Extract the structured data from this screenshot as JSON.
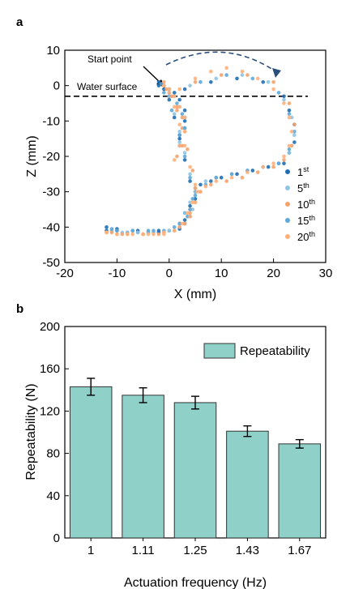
{
  "chart_data": [
    {
      "panel_label": "a",
      "type": "scatter",
      "title": "",
      "xlabel": "X (mm)",
      "ylabel": "Z (mm)",
      "xlim": [
        -20,
        30
      ],
      "ylim": [
        -50,
        10
      ],
      "xticks": [
        "-20",
        "-10",
        "0",
        "10",
        "20",
        "30"
      ],
      "yticks": [
        "10",
        "0",
        "-10",
        "-20",
        "-30",
        "-40",
        "-50"
      ],
      "annotations": {
        "start_point": "Start point",
        "water_surface": "Water surface",
        "water_surface_z": -3
      },
      "legend_position": "right",
      "series": [
        {
          "base": "1",
          "sup": "st",
          "color": "#1f6eb5",
          "x": [
            -12,
            -10,
            -6,
            -2,
            2,
            4,
            5,
            4,
            3,
            2,
            1,
            0,
            -1,
            -2,
            -2,
            -1,
            0,
            1,
            2,
            3,
            3,
            2,
            0,
            3,
            8,
            13,
            18,
            22,
            23,
            24,
            24,
            23,
            22,
            21,
            19,
            16,
            13,
            10,
            8,
            6,
            5,
            4,
            3,
            3,
            3,
            2,
            0,
            -2,
            -4,
            -6,
            -8,
            -10,
            -12
          ],
          "y": [
            -40,
            -40.5,
            -41,
            -41,
            -40,
            -37,
            -32,
            -27,
            -21,
            -15,
            -9,
            -4,
            -1,
            0,
            1,
            0,
            -1,
            -2,
            -4,
            -7,
            -10,
            -14,
            -3,
            -1,
            1,
            2,
            1,
            -3,
            -7,
            -11,
            -16,
            -19,
            -22,
            -22,
            -23,
            -24,
            -25,
            -26,
            -27,
            -28,
            -30,
            -34,
            -36,
            -38,
            -39,
            -40.5,
            -41,
            -41.5,
            -41.5,
            -41.5,
            -41.5,
            -41,
            -41
          ]
        },
        {
          "base": "5",
          "sup": "th",
          "color": "#8fc4e3",
          "x": [
            -11,
            -8,
            -4,
            0,
            3,
            4.5,
            5,
            4,
            3,
            2,
            1,
            0,
            -1,
            -1,
            0,
            1,
            2,
            3,
            3,
            2,
            1,
            4,
            9,
            14,
            19,
            22,
            23.5,
            24,
            23,
            21,
            18,
            15,
            12,
            9,
            7,
            5,
            4,
            3,
            2,
            0,
            -3,
            -6,
            -9,
            -11
          ],
          "y": [
            -41,
            -41.5,
            -41.5,
            -41,
            -39,
            -35,
            -30,
            -25,
            -19,
            -13,
            -8,
            -3,
            0,
            1,
            -1,
            -3,
            -6,
            -9,
            -12,
            -16,
            -3,
            0,
            2,
            3,
            1,
            -4,
            -9,
            -14,
            -19,
            -22,
            -23,
            -24,
            -25,
            -26,
            -27,
            -29,
            -33,
            -36,
            -39,
            -41,
            -41.5,
            -41.5,
            -41.5,
            -41
          ]
        },
        {
          "base": "10",
          "sup": "th",
          "color": "#f4a36b",
          "x": [
            -12,
            -9,
            -5,
            -1,
            2,
            4,
            5,
            4.5,
            3.5,
            2.5,
            1.5,
            0,
            -1,
            -0.5,
            0.5,
            1.5,
            2.5,
            3,
            2.5,
            1.5,
            5,
            10,
            15,
            20,
            23,
            24,
            23.5,
            22,
            20,
            17,
            14,
            11,
            8,
            6,
            5,
            4,
            3,
            1,
            -2,
            -5,
            -8,
            -11
          ],
          "y": [
            -41.5,
            -42,
            -42,
            -41.5,
            -39,
            -35,
            -29,
            -24,
            -18,
            -12,
            -7,
            -2,
            0,
            -1,
            -3,
            -6,
            -9,
            -13,
            -17,
            -20,
            1,
            3,
            3,
            1,
            -5,
            -11,
            -17,
            -21,
            -23,
            -24.5,
            -26,
            -27,
            -28,
            -30,
            -33,
            -36,
            -39,
            -41,
            -42,
            -42,
            -42,
            -41.5
          ]
        },
        {
          "base": "15",
          "sup": "th",
          "color": "#5ea9d8",
          "x": [
            -11,
            -7,
            -3,
            1,
            3.5,
            4.5,
            4,
            3,
            2,
            0.5,
            -1,
            -1.5,
            0,
            1.5,
            2.5,
            3,
            2,
            6,
            11,
            16,
            21,
            23,
            24,
            23,
            21,
            18,
            15,
            12,
            9,
            7,
            5,
            4,
            2,
            -1,
            -4,
            -7,
            -10
          ],
          "y": [
            -40.5,
            -41,
            -41,
            -40,
            -37,
            -32,
            -26,
            -20,
            -14,
            -7,
            -2,
            0.5,
            -2,
            -5,
            -8,
            -12,
            -17,
            1,
            3,
            2,
            -2,
            -8,
            -13,
            -18,
            -22,
            -23,
            -24,
            -25,
            -26,
            -28,
            -31,
            -35,
            -39,
            -41,
            -41,
            -41,
            -41
          ]
        },
        {
          "base": "20",
          "sup": "th",
          "color": "#ffb07a",
          "x": [
            -12,
            -10,
            -7,
            -4,
            -1,
            2,
            4,
            5,
            5,
            4,
            3,
            2,
            1,
            0,
            -1,
            -1,
            0,
            1,
            2,
            3,
            3,
            2,
            1,
            2,
            5,
            8,
            11,
            14,
            17,
            20,
            22,
            23,
            23.5,
            23,
            22,
            20,
            18,
            15,
            12,
            9,
            7,
            5.5,
            4.5,
            3.5,
            2.5,
            1,
            -1,
            -3,
            -5,
            -8,
            -10,
            -12
          ],
          "y": [
            -41.5,
            -42,
            -42,
            -42,
            -41.5,
            -40,
            -37,
            -33,
            -28,
            -23,
            -17,
            -11,
            -6,
            -2,
            0,
            1,
            -1,
            -3,
            -6,
            -9,
            -13,
            -17,
            -21,
            -1,
            2,
            4,
            5,
            4,
            2,
            -1,
            -5,
            -9,
            -13,
            -17,
            -20,
            -22,
            -23,
            -24.5,
            -26,
            -27,
            -28.5,
            -30,
            -33,
            -36,
            -39,
            -41,
            -42,
            -42,
            -42,
            -42,
            -42,
            -41.5
          ]
        }
      ]
    },
    {
      "panel_label": "b",
      "type": "bar",
      "title": "",
      "xlabel": "Actuation frequency (Hz)",
      "ylabel": "Repeatability (N)",
      "ylim": [
        0,
        200
      ],
      "yticks": [
        "0",
        "40",
        "80",
        "120",
        "160",
        "200"
      ],
      "categories": [
        "1",
        "1.11",
        "1.25",
        "1.43",
        "1.67"
      ],
      "series": [
        {
          "name": "Repeatability",
          "values": [
            143,
            135,
            128,
            101,
            89
          ],
          "errors": [
            8,
            7,
            6,
            5,
            4
          ]
        }
      ],
      "bar_color": "#8fd1c8",
      "legend_position": "top-right"
    }
  ]
}
